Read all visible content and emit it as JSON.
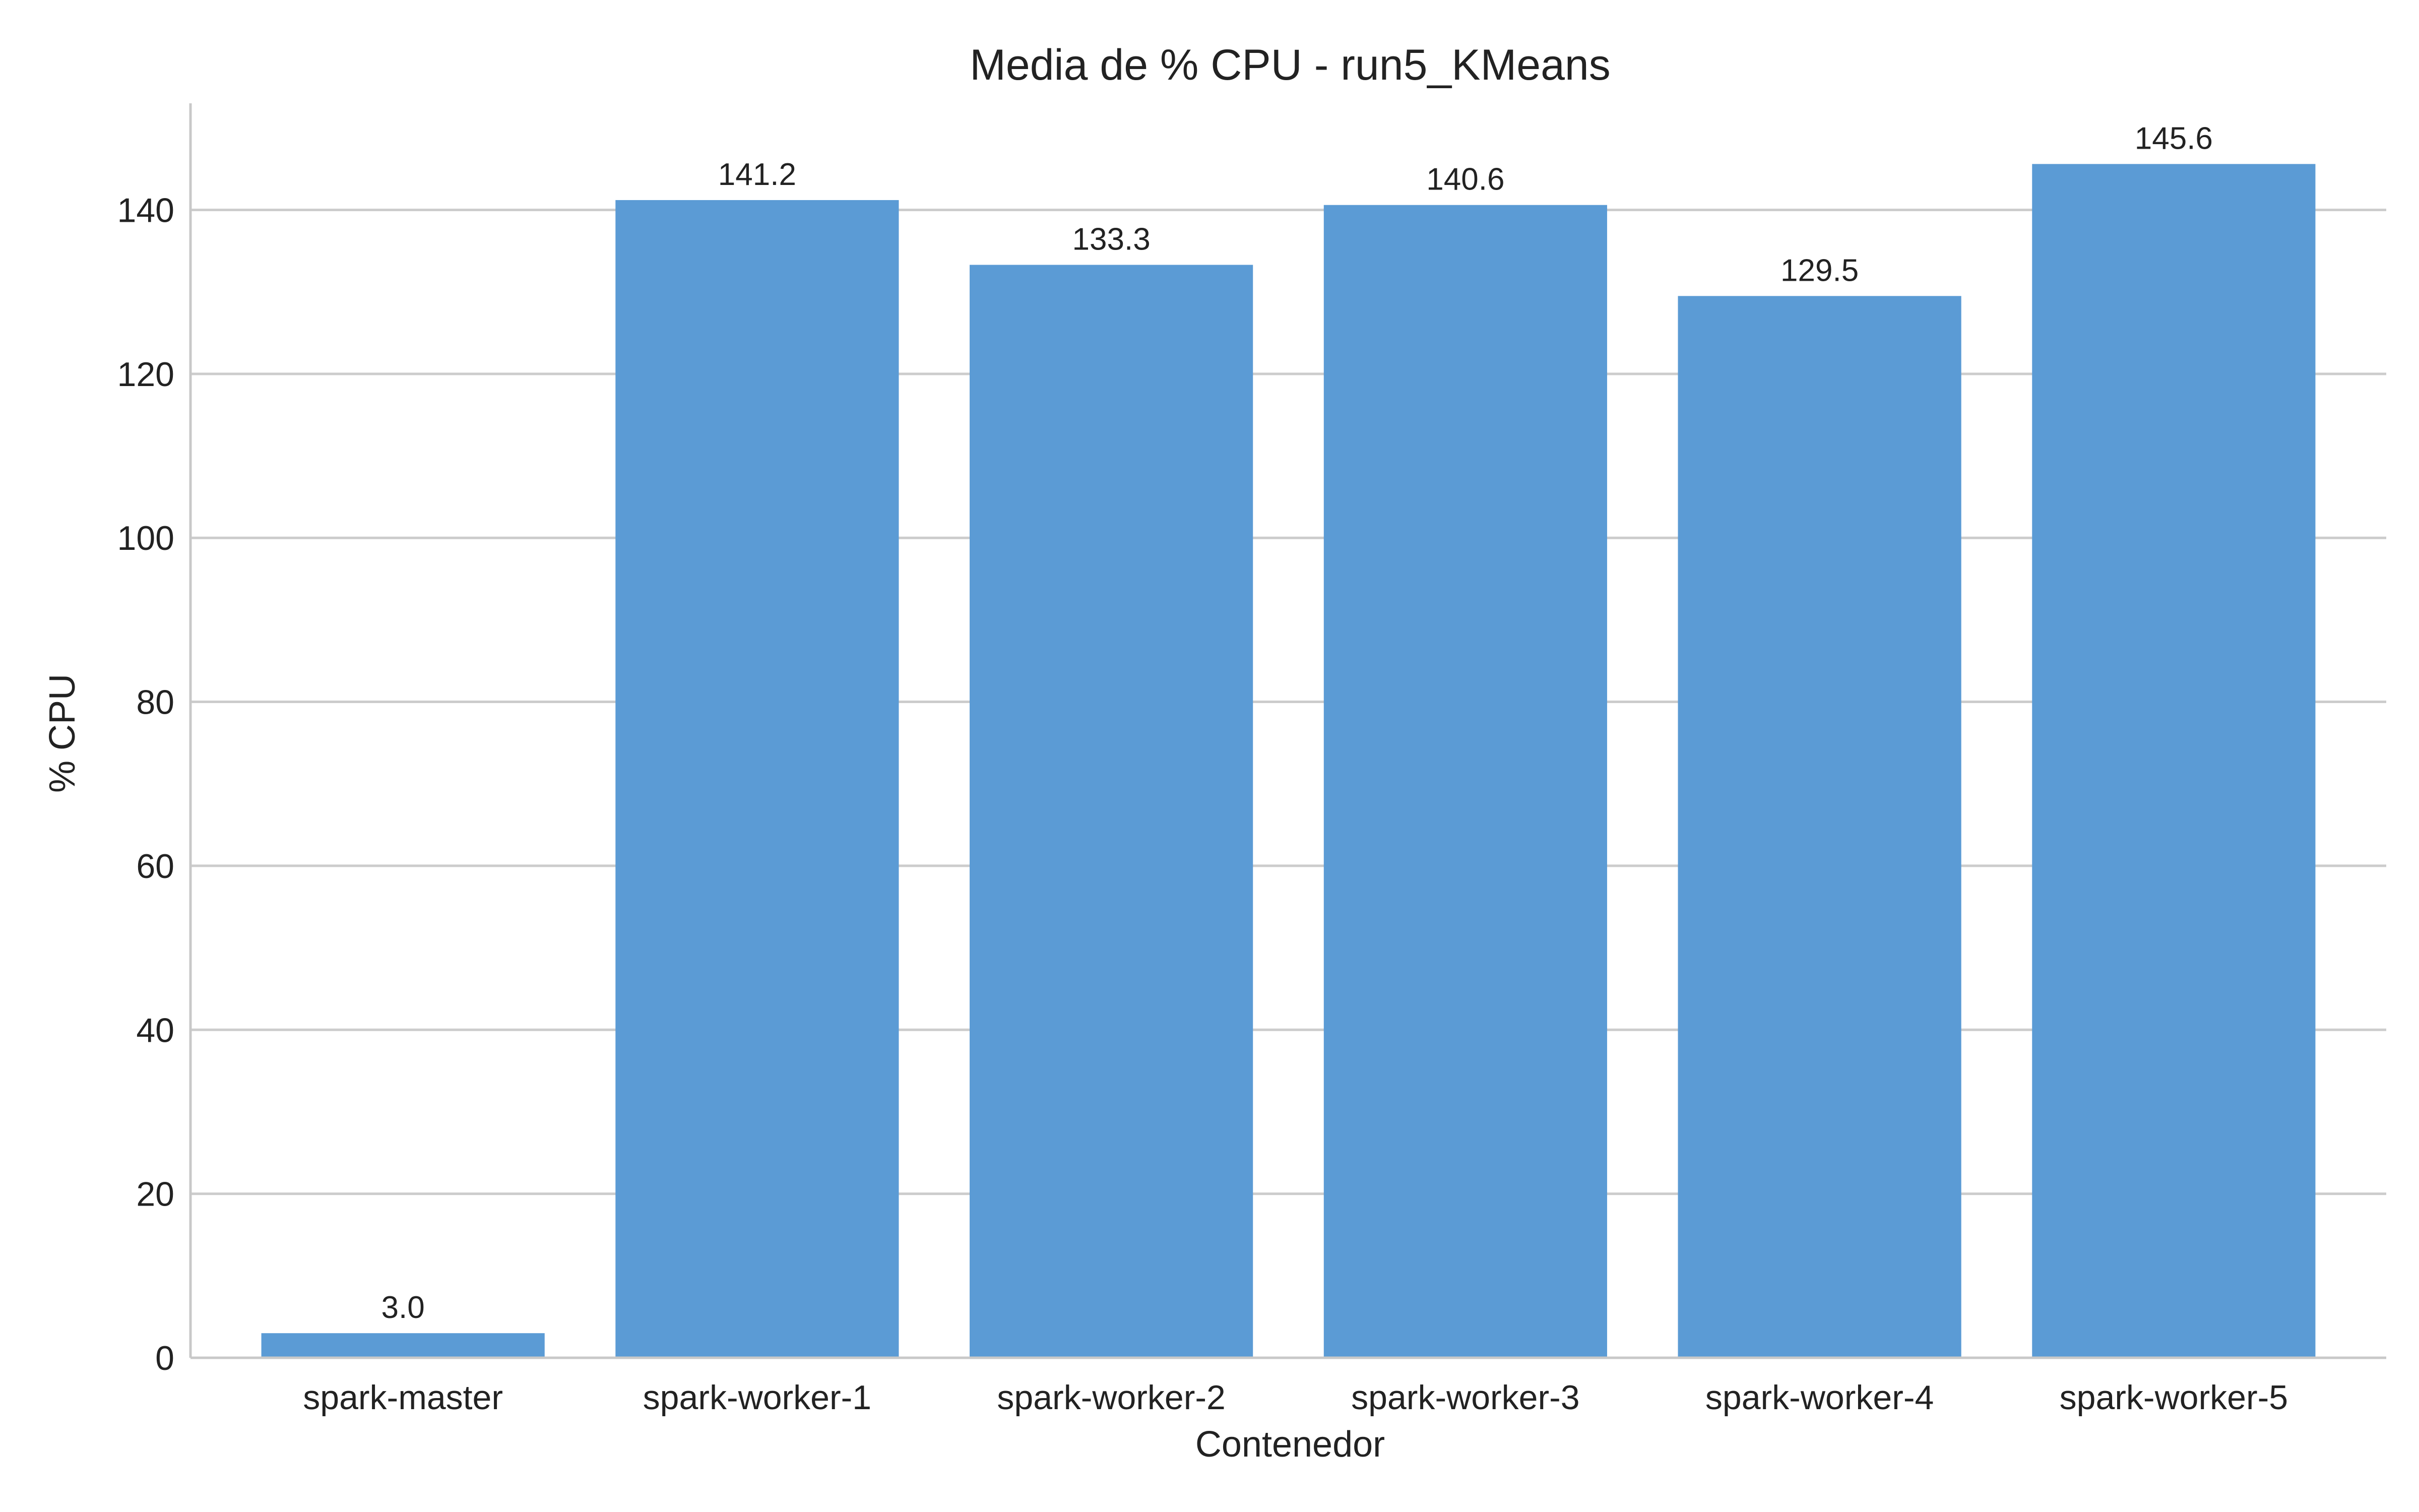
{
  "chart_data": {
    "type": "bar",
    "title": "Media de % CPU - run5_KMeans",
    "xlabel": "Contenedor",
    "ylabel": "% CPU",
    "categories": [
      "spark-master",
      "spark-worker-1",
      "spark-worker-2",
      "spark-worker-3",
      "spark-worker-4",
      "spark-worker-5"
    ],
    "values": [
      3.0,
      141.2,
      133.3,
      140.6,
      129.5,
      145.6
    ],
    "value_labels": [
      "3.0",
      "141.2",
      "133.3",
      "140.6",
      "129.5",
      "145.6"
    ],
    "ylim": [
      0,
      153
    ],
    "yticks": [
      0,
      20,
      40,
      60,
      80,
      100,
      120,
      140
    ],
    "ytick_labels": [
      "0",
      "20",
      "40",
      "60",
      "80",
      "100",
      "120",
      "140"
    ],
    "grid": "horizontal",
    "legend": "none",
    "bar_color": "#5b9bd5"
  }
}
